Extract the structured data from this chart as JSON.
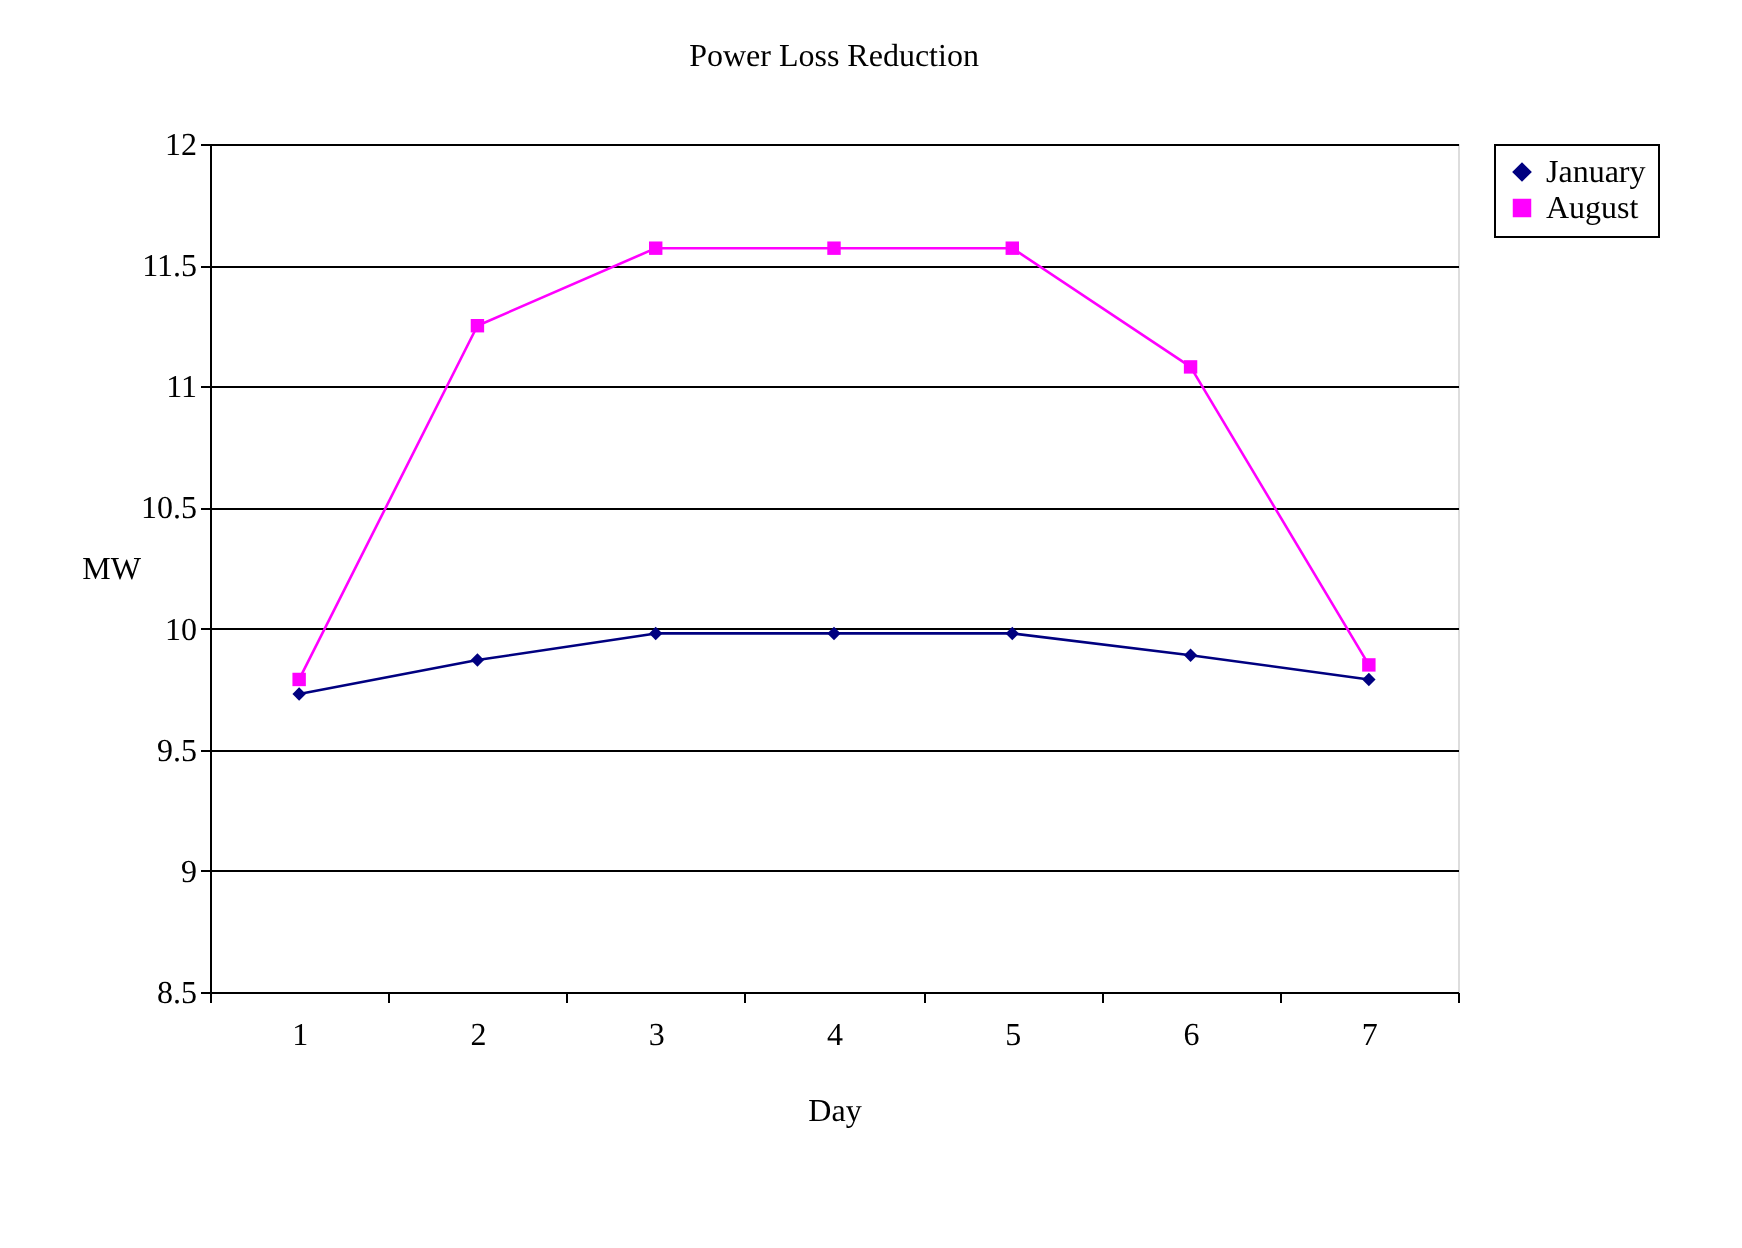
{
  "chart_data": {
    "type": "line",
    "title": "Power Loss Reduction",
    "xlabel": "Day",
    "ylabel": "MW",
    "categories": [
      "1",
      "2",
      "3",
      "4",
      "5",
      "6",
      "7"
    ],
    "series": [
      {
        "name": "January",
        "color": "#000080",
        "marker": "diamond",
        "values": [
          9.73,
          9.87,
          9.98,
          9.98,
          9.98,
          9.89,
          9.79
        ]
      },
      {
        "name": "August",
        "color": "#ff00ff",
        "marker": "square",
        "values": [
          9.79,
          11.25,
          11.57,
          11.57,
          11.57,
          11.08,
          9.85
        ]
      }
    ],
    "ylim": [
      8.5,
      12
    ],
    "yticks": [
      8.5,
      9,
      9.5,
      10,
      10.5,
      11,
      11.5,
      12
    ],
    "grid": "y",
    "legend": "right"
  }
}
